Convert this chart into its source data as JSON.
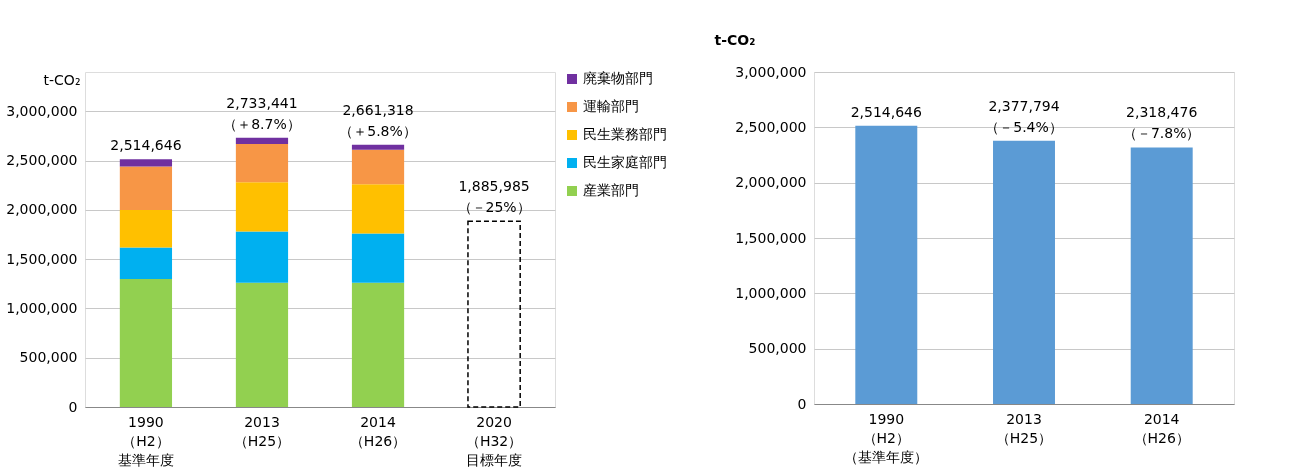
{
  "chart_data": [
    {
      "type": "bar",
      "stacked": true,
      "ylabel": "t-CO₂",
      "categories": [
        "1990（H2）基準年度",
        "2013（H25）",
        "2014（H26）",
        "2020（H32）目標年度"
      ],
      "series": [
        {
          "name": "産業部門",
          "color": "#92d050",
          "values": [
            1300000,
            1260000,
            1260000,
            null
          ]
        },
        {
          "name": "民生家庭部門",
          "color": "#00b0f0",
          "values": [
            320000,
            520000,
            500000,
            null
          ]
        },
        {
          "name": "民生業務部門",
          "color": "#ffc000",
          "values": [
            380000,
            500000,
            500000,
            null
          ]
        },
        {
          "name": "運輸部門",
          "color": "#f79646",
          "values": [
            440000,
            390000,
            350000,
            null
          ]
        },
        {
          "name": "廃棄物部門",
          "color": "#7030a0",
          "values": [
            74646,
            63441,
            51318,
            null
          ]
        },
        {
          "color": "#000000",
          "line_style": "dashed",
          "values": [
            null,
            null,
            null,
            1885985
          ]
        }
      ],
      "totals": [
        "2,514,646",
        "2,733,441\n（＋8.7%）",
        "2,661,318\n（＋5.8%）",
        "1,885,985\n（－25%）"
      ],
      "ylim": [
        0,
        3400000
      ],
      "yticks": [
        {
          "value": 0,
          "label": "0"
        },
        {
          "value": 500000,
          "label": "500,000"
        },
        {
          "value": 1000000,
          "label": "1,000,000"
        },
        {
          "value": 1500000,
          "label": "1,500,000"
        },
        {
          "value": 2000000,
          "label": "2,000,000"
        },
        {
          "value": 2500000,
          "label": "2,500,000"
        },
        {
          "value": 3000000,
          "label": "3,000,000"
        }
      ],
      "grid": "y",
      "legend": "right"
    },
    {
      "type": "bar",
      "ylabel": "t-CO₂",
      "categories": [
        "1990（H2）（基準年度）",
        "2013（H25）",
        "2014（H26）"
      ],
      "series": [
        {
          "color": "#5b9bd5",
          "values": [
            2514646,
            2377794,
            2318476
          ],
          "value_labels": [
            "2,514,646",
            "2,377,794\n（－5.4%）",
            "2,318,476\n（－7.8%）"
          ]
        }
      ],
      "ylim": [
        0,
        3000000
      ],
      "yticks": [
        {
          "value": 0,
          "label": "0"
        },
        {
          "value": 500000,
          "label": "500,000"
        },
        {
          "value": 1000000,
          "label": "1,000,000"
        },
        {
          "value": 1500000,
          "label": "1,500,000"
        },
        {
          "value": 2000000,
          "label": "2,000,000"
        },
        {
          "value": 2500000,
          "label": "2,500,000"
        },
        {
          "value": 3000000,
          "label": "3,000,000"
        }
      ],
      "grid": "y",
      "legend": false
    }
  ]
}
